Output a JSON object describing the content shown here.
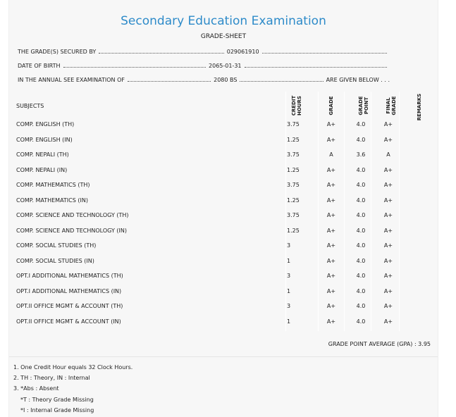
{
  "header": {
    "title": "Secondary Education Examination",
    "subtitle": "GRADE-SHEET"
  },
  "info": [
    {
      "label": "THE GRADE(S) SECURED BY",
      "value": "029061910",
      "end": ""
    },
    {
      "label": "DATE OF BIRTH",
      "value": "2065-01-31",
      "end": ""
    },
    {
      "label": "IN THE ANNUAL SEE EXAMINATION OF",
      "value": "2080 BS",
      "end": "ARE GIVEN BELOW . . ."
    }
  ],
  "table": {
    "columns": [
      "SUBJECTS",
      "CREDIT HOURS",
      "GRADE",
      "GRADE POINT",
      "FINAL GRADE",
      "REMARKS"
    ],
    "rows": [
      [
        "COMP. ENGLISH (TH)",
        "3.75",
        "A+",
        "4.0",
        "A+"
      ],
      [
        "COMP. ENGLISH (IN)",
        "1.25",
        "A+",
        "4.0",
        "A+"
      ],
      [
        "COMP. NEPALI (TH)",
        "3.75",
        "A",
        "3.6",
        "A"
      ],
      [
        "COMP. NEPALI (IN)",
        "1.25",
        "A+",
        "4.0",
        "A+"
      ],
      [
        "COMP. MATHEMATICS (TH)",
        "3.75",
        "A+",
        "4.0",
        "A+"
      ],
      [
        "COMP. MATHEMATICS (IN)",
        "1.25",
        "A+",
        "4.0",
        "A+"
      ],
      [
        "COMP. SCIENCE AND TECHNOLOGY (TH)",
        "3.75",
        "A+",
        "4.0",
        "A+"
      ],
      [
        "COMP. SCIENCE AND TECHNOLOGY (IN)",
        "1.25",
        "A+",
        "4.0",
        "A+"
      ],
      [
        "COMP. SOCIAL STUDIES (TH)",
        "3",
        "A+",
        "4.0",
        "A+"
      ],
      [
        "COMP. SOCIAL STUDIES (IN)",
        "1",
        "A+",
        "4.0",
        "A+"
      ],
      [
        "OPT.I ADDITIONAL MATHEMATICS (TH)",
        "3",
        "A+",
        "4.0",
        "A+"
      ],
      [
        "OPT.I ADDITIONAL MATHEMATICS (IN)",
        "1",
        "A+",
        "4.0",
        "A+"
      ],
      [
        "OPT.II OFFICE MGMT & ACCOUNT (TH)",
        "3",
        "A+",
        "4.0",
        "A+"
      ],
      [
        "OPT.II OFFICE MGMT & ACCOUNT (IN)",
        "1",
        "A+",
        "4.0",
        "A+"
      ]
    ]
  },
  "gpa": "GRADE POINT AVERAGE (GPA) : 3.95",
  "notes": [
    "1. One Credit Hour equals 32 Clock Hours.",
    "2. TH : Theory, IN : Internal",
    "3. *Abs : Absent",
    "*T : Theory Grade Missing",
    "*I : Internal Grade Missing"
  ]
}
